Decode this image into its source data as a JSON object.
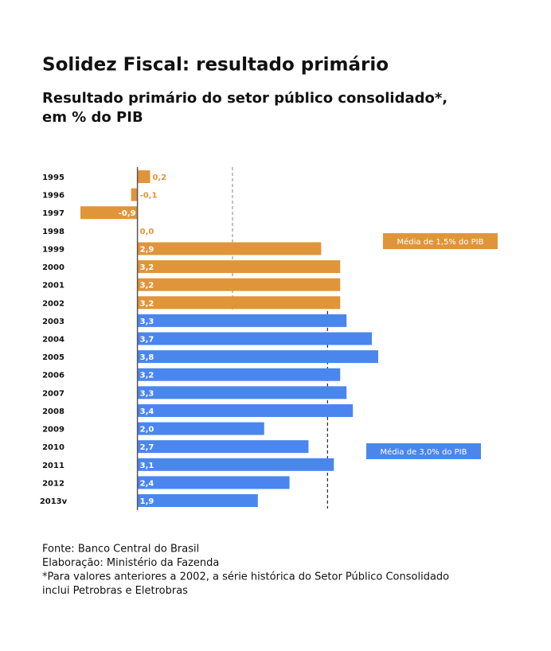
{
  "chart_data": {
    "type": "bar",
    "orientation": "horizontal",
    "title": "Solidez Fiscal: resultado primário",
    "subtitle": [
      "Resultado primário do setor público consolidado*,",
      "em % do PIB"
    ],
    "categories": [
      "1995",
      "1996",
      "1997",
      "1998",
      "1999",
      "2000",
      "2001",
      "2002",
      "2003",
      "2004",
      "2005",
      "2006",
      "2007",
      "2008",
      "2009",
      "2010",
      "2011",
      "2012",
      "2013v"
    ],
    "values": [
      0.2,
      -0.1,
      -0.9,
      0.0,
      2.9,
      3.2,
      3.2,
      3.2,
      3.3,
      3.7,
      3.8,
      3.2,
      3.3,
      3.4,
      2.0,
      2.7,
      3.1,
      2.4,
      1.9
    ],
    "value_labels": [
      "0,2",
      "-0,1",
      "-0,9",
      "0,0",
      "2,9",
      "3,2",
      "3,2",
      "3,2",
      "3,3",
      "3,7",
      "3,8",
      "3,2",
      "3,3",
      "3,4",
      "2,0",
      "2,7",
      "3,1",
      "2,4",
      "1,9"
    ],
    "colors": [
      "#e0953a",
      "#e0953a",
      "#e0953a",
      "#e0953a",
      "#e0953a",
      "#e0953a",
      "#e0953a",
      "#e0953a",
      "#4a86ee",
      "#4a86ee",
      "#4a86ee",
      "#4a86ee",
      "#4a86ee",
      "#4a86ee",
      "#4a86ee",
      "#4a86ee",
      "#4a86ee",
      "#4a86ee",
      "#4a86ee"
    ],
    "reference_lines": [
      {
        "value": 1.5,
        "label": "Média de 1,5% do PIB",
        "color": "#e0953a",
        "line_color": "#999999",
        "start": "1995",
        "end": "2002"
      },
      {
        "value": 3.0,
        "label": "Média de 3,0% do PIB",
        "color": "#4a86ee",
        "line_color": "#222222",
        "start": "2003",
        "end": "2013v"
      }
    ],
    "footnotes": [
      "Fonte: Banco Central do Brasil",
      "Elaboração: Ministério da Fazenda",
      "*Para valores anteriores a 2002, a série histórica do Setor Público Consolidado",
      "inclui Petrobras e Eletrobras"
    ]
  }
}
